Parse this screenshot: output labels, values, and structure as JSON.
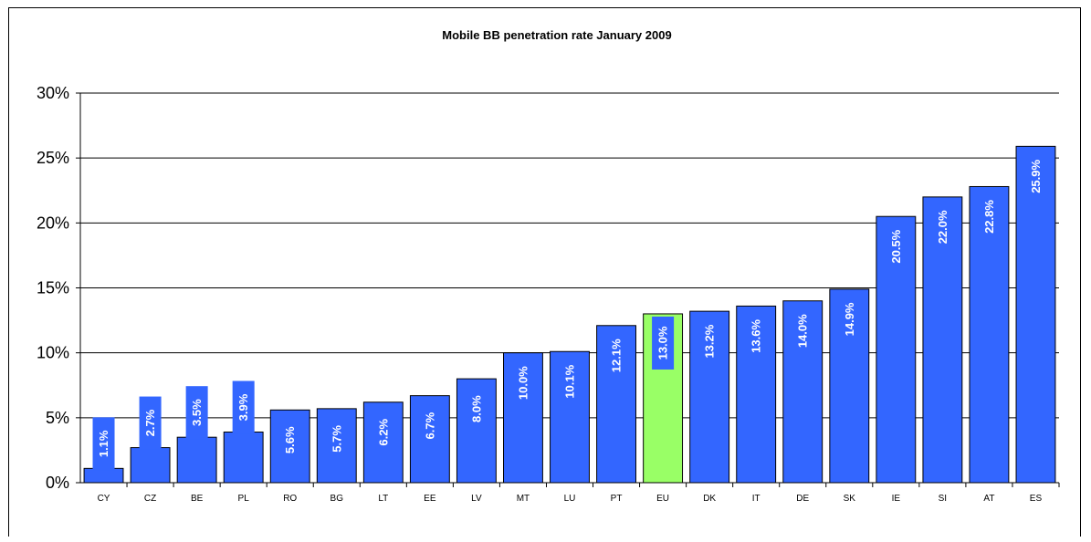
{
  "chart_data": {
    "type": "bar",
    "title": "Mobile BB penetration rate January 2009",
    "xlabel": "",
    "ylabel": "",
    "ylim": [
      0,
      30
    ],
    "yticks": [
      "0%",
      "5%",
      "10%",
      "15%",
      "20%",
      "25%",
      "30%"
    ],
    "grid": true,
    "legend": "none",
    "categories": [
      "CY",
      "CZ",
      "BE",
      "PL",
      "RO",
      "BG",
      "LT",
      "EE",
      "LV",
      "MT",
      "LU",
      "PT",
      "EU",
      "DK",
      "IT",
      "DE",
      "SK",
      "IE",
      "SI",
      "AT",
      "ES"
    ],
    "values": [
      1.1,
      2.7,
      3.5,
      3.9,
      5.6,
      5.7,
      6.2,
      6.7,
      8.0,
      10.0,
      10.1,
      12.1,
      13.0,
      13.2,
      13.6,
      14.0,
      14.9,
      20.5,
      22.0,
      22.8,
      25.9
    ],
    "data_labels": [
      "1.1%",
      "2.7%",
      "3.5%",
      "3.9%",
      "5.6%",
      "5.7%",
      "6.2%",
      "6.7%",
      "8.0%",
      "10.0%",
      "10.1%",
      "12.1%",
      "13.0%",
      "13.2%",
      "13.6%",
      "14.0%",
      "14.9%",
      "20.5%",
      "22.0%",
      "22.8%",
      "25.9%"
    ],
    "highlight_category": "EU",
    "colors": {
      "bar": "#3366ff",
      "highlight": "#99ff66",
      "label_box": "#3366ff",
      "label_text": "#ffffff"
    }
  }
}
